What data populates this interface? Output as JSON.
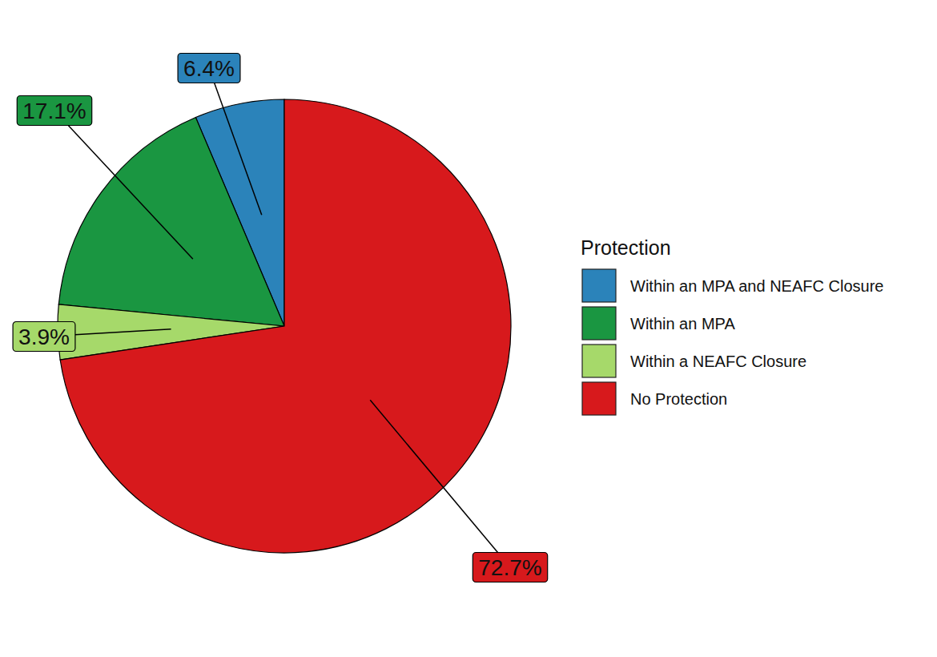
{
  "chart_data": {
    "type": "pie",
    "legend_title": "Protection",
    "legend": "right",
    "categories": [
      "Within an MPA and NEAFC Closure",
      "Within an MPA",
      "Within a NEAFC Closure",
      "No Protection"
    ],
    "values": [
      6.4,
      17.1,
      3.9,
      72.7
    ],
    "value_labels": [
      "6.4%",
      "17.1%",
      "3.9%",
      "72.7%"
    ],
    "colors": [
      "#2b83ba",
      "#1a9641",
      "#a6d96a",
      "#d7191c"
    ],
    "data_labels": true
  }
}
